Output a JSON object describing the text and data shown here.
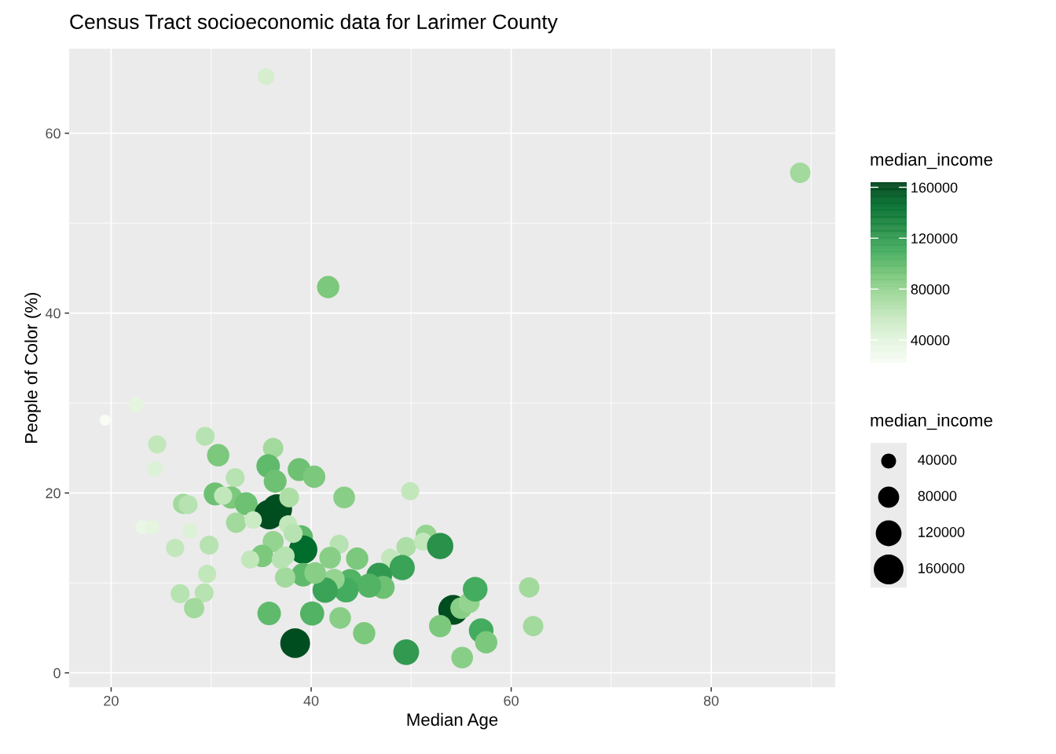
{
  "chart_data": {
    "type": "bubble",
    "title": "Census Tract socioeconomic data for Larimer County",
    "xlabel": "Median Age",
    "ylabel": "People of Color (%)",
    "clabel": "median_income",
    "legend_title": "median_income",
    "xlim": [
      15.8,
      92.4
    ],
    "ylim": [
      -1.6,
      69.4
    ],
    "xticks": [
      20,
      40,
      60,
      80
    ],
    "yticks": [
      0,
      20,
      40,
      60
    ],
    "grid": true,
    "clim": [
      22000,
      164000
    ],
    "cticks": [
      40000,
      80000,
      120000,
      160000
    ],
    "size_legend": [
      40000,
      80000,
      120000,
      160000
    ],
    "x": [
      35.5,
      88.9,
      41.7,
      19.4,
      22.5,
      24.6,
      24.4,
      29.4,
      30.7,
      36.2,
      35.7,
      36.4,
      38.8,
      40.3,
      32.4,
      43.3,
      49.9,
      27.2,
      27.7,
      30.4,
      32.0,
      33.5,
      35.8,
      36.6,
      37.8,
      32.5,
      34.2,
      23.1,
      24.1,
      27.9,
      26.4,
      29.8,
      29.6,
      26.9,
      29.3,
      28.3,
      37.7,
      36.2,
      39.0,
      39.2,
      35.1,
      37.4,
      42.8,
      41.9,
      44.6,
      47.9,
      49.5,
      51.5,
      51.2,
      52.9,
      49.1,
      46.8,
      47.2,
      45.8,
      43.9,
      43.5,
      42.3,
      41.4,
      39.2,
      40.4,
      37.4,
      35.8,
      40.1,
      42.9,
      45.3,
      38.4,
      49.5,
      54.2,
      55.0,
      55.8,
      56.4,
      52.9,
      57.0,
      57.5,
      55.1,
      61.8,
      62.2,
      33.9,
      37.0,
      31.2,
      38.2
    ],
    "values": [
      66.3,
      55.6,
      42.9,
      28.1,
      29.8,
      25.4,
      22.7,
      26.3,
      24.2,
      25.0,
      23.0,
      21.3,
      22.6,
      21.8,
      21.7,
      19.5,
      20.2,
      18.8,
      18.7,
      19.9,
      19.5,
      18.8,
      17.6,
      18.2,
      19.5,
      16.7,
      17.0,
      16.2,
      16.2,
      15.8,
      13.9,
      14.2,
      11.0,
      8.8,
      8.9,
      7.2,
      16.5,
      14.6,
      15.1,
      13.7,
      13.0,
      13.0,
      14.3,
      12.8,
      12.7,
      12.8,
      14.0,
      15.3,
      14.6,
      14.1,
      11.7,
      10.8,
      9.5,
      9.7,
      10.2,
      9.2,
      10.4,
      9.2,
      10.9,
      11.1,
      10.6,
      6.6,
      6.6,
      6.1,
      4.4,
      3.3,
      2.3,
      7.0,
      7.2,
      7.8,
      9.3,
      5.2,
      4.7,
      3.4,
      1.7,
      9.5,
      5.2,
      12.6,
      12.6,
      19.7,
      15.5
    ],
    "sizes": [
      50000,
      75000,
      90000,
      22000,
      40000,
      60000,
      45000,
      65000,
      90000,
      75000,
      100000,
      95000,
      95000,
      90000,
      65000,
      85000,
      60000,
      75000,
      65000,
      95000,
      90000,
      95000,
      160000,
      160000,
      70000,
      75000,
      55000,
      35000,
      40000,
      45000,
      60000,
      65000,
      60000,
      65000,
      65000,
      75000,
      60000,
      80000,
      100000,
      146000,
      90000,
      65000,
      65000,
      85000,
      90000,
      60000,
      70000,
      80000,
      60000,
      125000,
      115000,
      120000,
      95000,
      105000,
      105000,
      110000,
      80000,
      115000,
      100000,
      85000,
      75000,
      100000,
      105000,
      85000,
      90000,
      160000,
      120000,
      160000,
      85000,
      80000,
      110000,
      90000,
      110000,
      90000,
      85000,
      75000,
      75000,
      60000,
      65000,
      60000,
      65000
    ],
    "cvalues": [
      50000,
      75000,
      90000,
      22000,
      40000,
      60000,
      45000,
      65000,
      90000,
      75000,
      100000,
      95000,
      95000,
      90000,
      65000,
      85000,
      60000,
      75000,
      65000,
      95000,
      90000,
      95000,
      160000,
      160000,
      70000,
      75000,
      55000,
      35000,
      40000,
      45000,
      60000,
      65000,
      60000,
      65000,
      65000,
      75000,
      60000,
      80000,
      100000,
      146000,
      90000,
      65000,
      65000,
      85000,
      90000,
      60000,
      70000,
      80000,
      60000,
      125000,
      115000,
      120000,
      95000,
      105000,
      105000,
      110000,
      80000,
      115000,
      100000,
      85000,
      75000,
      100000,
      105000,
      85000,
      90000,
      160000,
      120000,
      160000,
      85000,
      80000,
      110000,
      90000,
      110000,
      90000,
      85000,
      75000,
      75000,
      60000,
      65000,
      60000,
      65000
    ]
  }
}
